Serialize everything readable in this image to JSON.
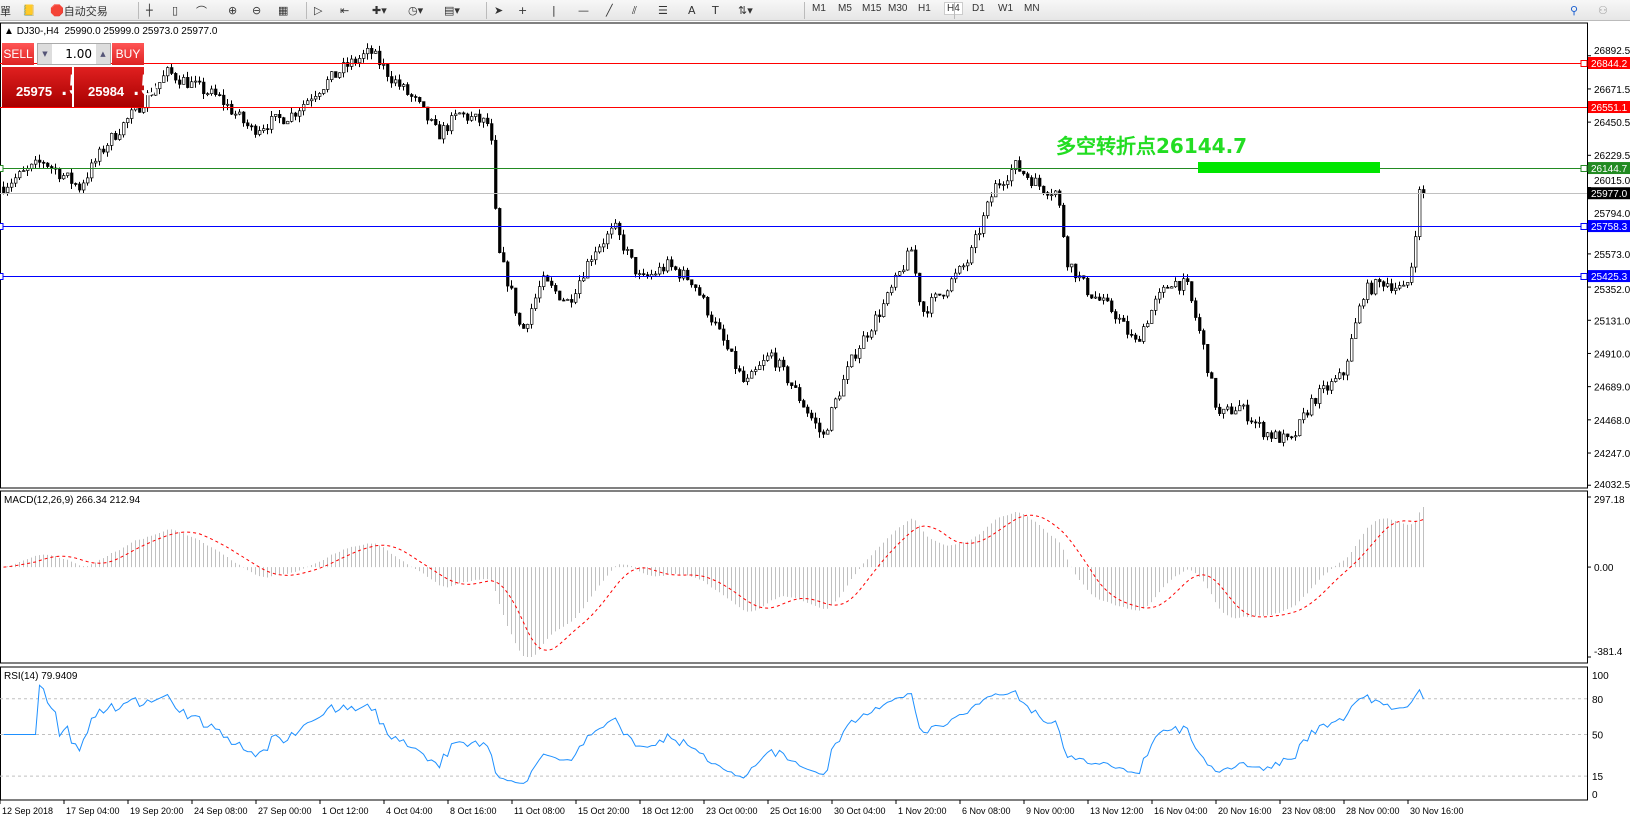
{
  "toolbar": {
    "cut_label": "單",
    "auto_trading_label": "自动交易",
    "icons": [
      "book-icon",
      "auto-trading-icon",
      "bar-chart-icon",
      "candlestick-icon",
      "line-chart-icon",
      "zoom-in-icon",
      "zoom-out-icon",
      "tile-windows-icon",
      "auto-scroll-icon",
      "chart-shift-icon",
      "indicators-icon",
      "periods-icon",
      "templates-icon",
      "cursor-icon",
      "crosshair-icon",
      "vertical-line-icon",
      "horizontal-line-icon",
      "trendline-icon",
      "equidistant-channel-icon",
      "fibonacci-icon",
      "text-icon",
      "text-label-icon",
      "arrows-icon",
      "search-icon",
      "community-icon"
    ],
    "timeframes": [
      "M1",
      "M5",
      "M15",
      "M30",
      "H1",
      "H4",
      "D1",
      "W1",
      "MN"
    ],
    "selected_timeframe": "H4"
  },
  "chart_header": {
    "symbol": "DJ30-,H4",
    "ohlc": "25990.0 25999.0 25973.0 25977.0"
  },
  "one_click": {
    "sell_label": "SELL",
    "buy_label": "BUY",
    "lot": "1.00",
    "sell_main": "25975",
    "sell_big": ".5",
    "buy_main": "25984",
    "buy_big": ".5"
  },
  "annotation": {
    "text": "多空转折点26144.7",
    "color": "#22dd22"
  },
  "chart_data": {
    "type": "candlestick",
    "price_axis_ticks": [
      "26892.5",
      "26671.5",
      "26450.5",
      "26229.5",
      "26015.0",
      "25794.0",
      "25573.0",
      "25352.0",
      "25131.0",
      "24910.0",
      "24689.0",
      "24468.0",
      "24247.0",
      "24032.5"
    ],
    "levels": [
      {
        "value": "26844.2",
        "color": "#ff0000"
      },
      {
        "value": "26551.1",
        "color": "#ff0000"
      },
      {
        "value": "26144.7",
        "color": "#228b22"
      },
      {
        "value": "25977.0",
        "color": "#000000"
      },
      {
        "value": "25758.3",
        "color": "#0000ff"
      },
      {
        "value": "25425.3",
        "color": "#0000ff"
      }
    ],
    "last_price": 25977.0,
    "macd": {
      "label": "MACD(12,26,9) 266.34 212.94",
      "ticks": [
        "297.18",
        "0.00",
        "-381.4"
      ],
      "range": [
        -381.4,
        297.18
      ]
    },
    "rsi": {
      "label": "RSI(14) 79.9409",
      "ticks": [
        "100",
        "80",
        "50",
        "15",
        "0"
      ],
      "levels": [
        80,
        50,
        15
      ]
    },
    "time_labels": [
      "12 Sep 2018",
      "17 Sep 04:00",
      "19 Sep 20:00",
      "24 Sep 08:00",
      "27 Sep 00:00",
      "1 Oct 12:00",
      "4 Oct 04:00",
      "8 Oct 16:00",
      "11 Oct 08:00",
      "15 Oct 20:00",
      "18 Oct 12:00",
      "23 Oct 00:00",
      "25 Oct 16:00",
      "30 Oct 04:00",
      "1 Nov 20:00",
      "6 Nov 08:00",
      "9 Nov 00:00",
      "13 Nov 12:00",
      "16 Nov 04:00",
      "20 Nov 16:00",
      "23 Nov 08:00",
      "28 Nov 00:00",
      "30 Nov 16:00"
    ]
  }
}
